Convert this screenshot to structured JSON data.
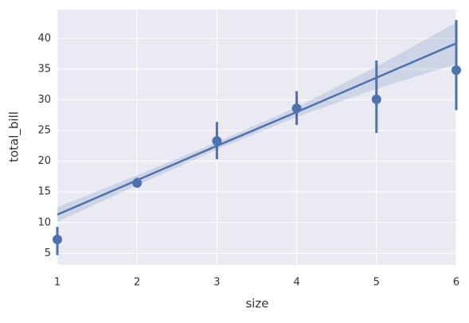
{
  "chart_data": {
    "type": "regplot",
    "x_label": "size",
    "y_label": "total_bill",
    "color": "#4c72b0",
    "x": [
      1,
      2,
      3,
      4,
      5,
      6
    ],
    "values": [
      7.24,
      16.45,
      23.28,
      28.61,
      30.07,
      34.83
    ],
    "ci_low": [
      4.7,
      15.7,
      20.3,
      25.9,
      24.6,
      28.3
    ],
    "ci_high": [
      9.3,
      17.3,
      26.4,
      31.4,
      36.4,
      43.0
    ],
    "fit_x": [
      1,
      2,
      3,
      4,
      5,
      6
    ],
    "fit_values": [
      11.3,
      16.9,
      22.5,
      28.0,
      33.6,
      39.2
    ],
    "fit_lower": [
      10.1,
      16.1,
      21.9,
      27.2,
      31.8,
      35.8
    ],
    "fit_upper": [
      12.5,
      17.7,
      23.1,
      28.8,
      35.4,
      42.6
    ],
    "xlim": [
      1,
      6
    ],
    "xticks": [
      1,
      2,
      3,
      4,
      5,
      6
    ],
    "ylim": [
      3.1,
      44.7
    ],
    "yticks": [
      5,
      10,
      15,
      20,
      25,
      30,
      35,
      40
    ],
    "grid": true
  }
}
